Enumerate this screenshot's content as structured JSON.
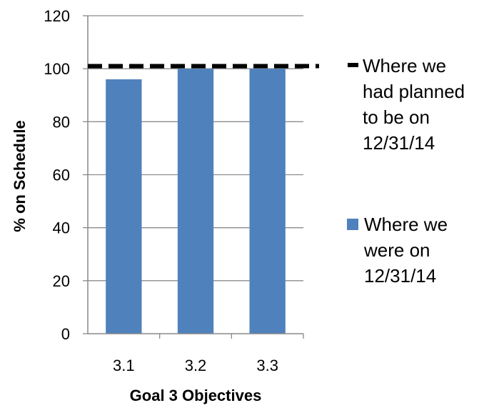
{
  "chart_data": {
    "type": "bar",
    "categories": [
      "3.1",
      "3.2",
      "3.3"
    ],
    "series": [
      {
        "name": "Where we were on 12/31/14",
        "values": [
          96,
          100,
          100
        ],
        "color": "#4f81bd"
      }
    ],
    "reference_line": {
      "name": "Where we had planned to be on 12/31/14",
      "value": 101,
      "style": "dashed",
      "color": "#000000"
    },
    "legend_lines": {
      "planned": [
        "Where we",
        "had planned",
        "to be on",
        "12/31/14"
      ],
      "actual": [
        "Where we",
        "were on",
        "12/31/14"
      ]
    },
    "xlabel": "Goal 3 Objectives",
    "ylabel": "% on Schedule",
    "ylim": [
      0,
      120
    ],
    "yticks": [
      0,
      20,
      40,
      60,
      80,
      100,
      120
    ],
    "grid": true,
    "legend_position": "right"
  }
}
